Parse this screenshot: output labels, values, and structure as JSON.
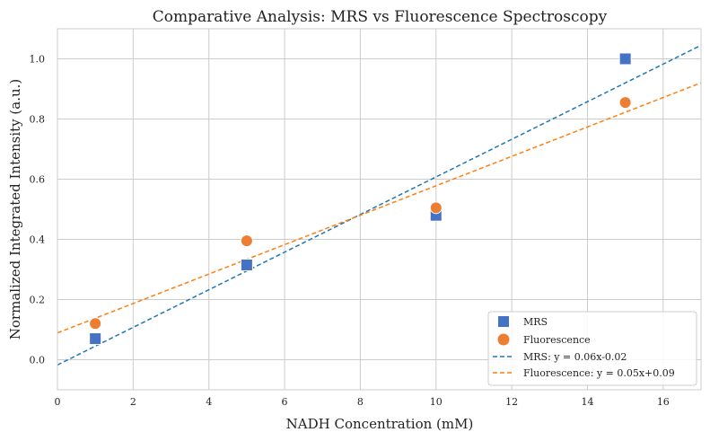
{
  "chart_data": {
    "type": "scatter",
    "title": "Comparative Analysis: MRS vs Fluorescence Spectroscopy",
    "xlabel": "NADH Concentration (mM)",
    "ylabel": "Normalized Integrated Intensity (a.u.)",
    "xlim": [
      0,
      17
    ],
    "ylim": [
      -0.1,
      1.1
    ],
    "xticks": [
      0,
      2,
      4,
      6,
      8,
      10,
      12,
      14,
      16
    ],
    "yticks": [
      0.0,
      0.2,
      0.4,
      0.6,
      0.8,
      1.0
    ],
    "grid": true,
    "legend_position": "bottom-right",
    "series": [
      {
        "name": "MRS",
        "marker": "square",
        "color": "#4472c4",
        "x": [
          1,
          5,
          10,
          15
        ],
        "y": [
          0.07,
          0.315,
          0.48,
          1.0
        ],
        "yerr": [
          0.01,
          0.01,
          0.015,
          0.01
        ]
      },
      {
        "name": "Fluorescence",
        "marker": "circle",
        "color": "#ed7d31",
        "x": [
          1,
          5,
          10,
          15
        ],
        "y": [
          0.12,
          0.395,
          0.505,
          0.855
        ],
        "yerr": [
          0.01,
          0.01,
          0.015,
          0.01
        ]
      }
    ],
    "fits": [
      {
        "label": "MRS: y = 0.06x-0.02",
        "color": "#1f77b4",
        "slope": 0.0625,
        "intercept": -0.0175
      },
      {
        "label": "Fluorescence: y = 0.05x+0.09",
        "color": "#ff7f0e",
        "slope": 0.0489,
        "intercept": 0.089
      }
    ]
  }
}
